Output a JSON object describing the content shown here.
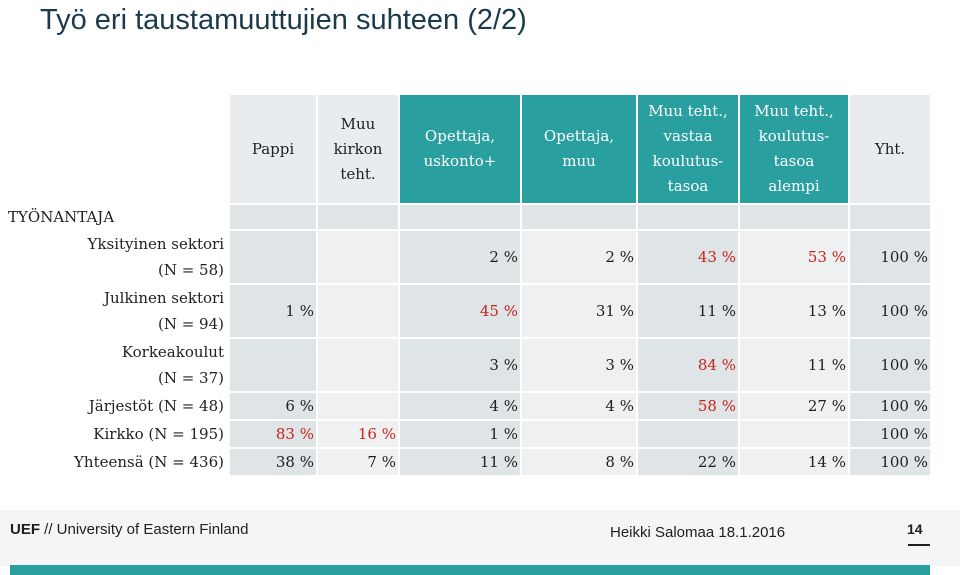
{
  "title": "Työ eri taustamuuttujien suhteen (2/2)",
  "columns": [
    {
      "label": "Pappi",
      "style": "light"
    },
    {
      "label": "Muu kirkon teht.",
      "style": "light"
    },
    {
      "label": "Opettaja, uskonto+",
      "style": "dark"
    },
    {
      "label": "Opettaja, muu",
      "style": "dark"
    },
    {
      "label": "Muu teht., vastaa koulutus-tasoa",
      "style": "dark"
    },
    {
      "label": "Muu teht., koulutus-tasoa alempi",
      "style": "dark"
    },
    {
      "label": "Yht.",
      "style": "light"
    }
  ],
  "section_label": "TYÖNANTAJA",
  "rows": [
    {
      "label": "Yksityinen sektori (N = 58)",
      "cells": [
        "",
        "",
        "2 %",
        "2 %",
        "43 %",
        "53 %",
        "100 %"
      ],
      "red": [
        false,
        false,
        false,
        false,
        true,
        true,
        false
      ]
    },
    {
      "label": "Julkinen sektori (N = 94)",
      "cells": [
        "1 %",
        "",
        "45 %",
        "31 %",
        "11 %",
        "13 %",
        "100 %"
      ],
      "red": [
        false,
        false,
        true,
        false,
        false,
        false,
        false
      ]
    },
    {
      "label": "Korkeakoulut (N = 37)",
      "cells": [
        "",
        "",
        "3 %",
        "3 %",
        "84 %",
        "11 %",
        "100 %"
      ],
      "red": [
        false,
        false,
        false,
        false,
        true,
        false,
        false
      ]
    },
    {
      "label": "Järjestöt (N = 48)",
      "cells": [
        "6 %",
        "",
        "4 %",
        "4 %",
        "58 %",
        "27 %",
        "100 %"
      ],
      "red": [
        false,
        false,
        false,
        false,
        true,
        false,
        false
      ]
    },
    {
      "label": "Kirkko (N = 195)",
      "cells": [
        "83 %",
        "16 %",
        "1 %",
        "",
        "",
        "",
        "100 %"
      ],
      "red": [
        true,
        true,
        false,
        false,
        false,
        false,
        false
      ]
    },
    {
      "label": "Yhteensä (N = 436)",
      "cells": [
        "38 %",
        "7 %",
        "11 %",
        "8 %",
        "22 %",
        "14 %",
        "100 %"
      ],
      "red": [
        false,
        false,
        false,
        false,
        false,
        false,
        false
      ]
    }
  ],
  "footer": {
    "org_bold": "UEF",
    "org_rest": " // University of Eastern Finland",
    "author_date": "Heikki Salomaa 18.1.2016",
    "page_number": "14"
  },
  "colors": {
    "teal": "#2a9fa0",
    "red_value": "#c8241c",
    "title": "#1b3a4b"
  }
}
